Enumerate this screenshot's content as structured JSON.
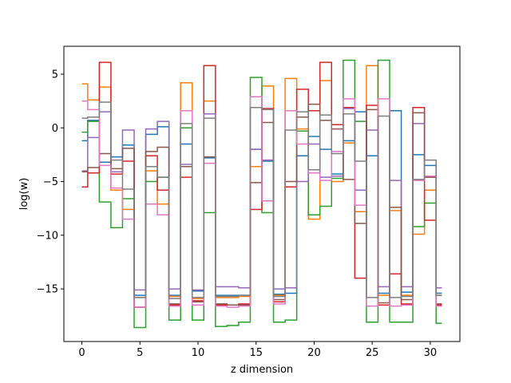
{
  "chart_data": {
    "type": "line",
    "drawstyle": "steps-mid",
    "title": "",
    "xlabel": "z dimension",
    "ylabel": "log(w)",
    "xlim": [
      -1.55,
      32.55
    ],
    "ylim": [
      -19.9,
      7.6
    ],
    "xticks": [
      0,
      5,
      10,
      15,
      20,
      25,
      30
    ],
    "yticks": [
      5,
      0,
      -5,
      -10,
      -15
    ],
    "grid": false,
    "legend": "none",
    "x": [
      0,
      1,
      2,
      3,
      4,
      5,
      6,
      7,
      8,
      9,
      10,
      11,
      12,
      13,
      14,
      15,
      16,
      17,
      18,
      19,
      20,
      21,
      22,
      23,
      24,
      25,
      26,
      27,
      28,
      29,
      30,
      31
    ],
    "series": [
      {
        "color": "#1f77b4",
        "values": [
          -1.2,
          0.7,
          -3.2,
          -2.7,
          -1.6,
          -15.6,
          -0.6,
          0.1,
          -15.6,
          -1.5,
          -15.2,
          -2.8,
          -15.6,
          -15.6,
          -15.6,
          -2.0,
          -3.1,
          -15.5,
          -15.4,
          -2.6,
          -0.8,
          -2.0,
          -4.3,
          -1.2,
          1.5,
          -2.6,
          -15.4,
          1.6,
          -15.3,
          -2.5,
          -3.5,
          -15.4
        ]
      },
      {
        "color": "#ff7f0e",
        "values": [
          4.1,
          2.6,
          3.8,
          -5.8,
          -7.6,
          -15.8,
          -4.0,
          -7.1,
          -15.7,
          4.2,
          -15.9,
          2.5,
          -15.8,
          -15.8,
          -15.7,
          -3.6,
          3.9,
          -15.6,
          4.6,
          -0.1,
          -8.5,
          4.4,
          -5.0,
          -1.4,
          -7.8,
          5.8,
          -15.6,
          -7.7,
          -15.6,
          -9.9,
          -5.8,
          -15.6
        ]
      },
      {
        "color": "#2ca02c",
        "values": [
          -0.4,
          0.6,
          -6.9,
          -9.3,
          -6.6,
          -18.6,
          -5.0,
          -4.6,
          -17.9,
          0.0,
          -17.9,
          -7.9,
          -18.5,
          -18.4,
          -18.1,
          4.7,
          -7.9,
          -18.1,
          -17.9,
          -0.3,
          -8.1,
          -7.3,
          -4.7,
          6.3,
          0.6,
          -18.1,
          6.3,
          -18.1,
          -18.1,
          -9.2,
          -7.0,
          -18.2
        ]
      },
      {
        "color": "#d62728",
        "values": [
          -5.5,
          -4.2,
          6.1,
          -4.3,
          -3.1,
          -16.7,
          -2.6,
          -5.8,
          -16.5,
          -4.6,
          -16.1,
          5.8,
          -16.5,
          -16.5,
          -16.4,
          -7.6,
          1.8,
          -16.2,
          -5.5,
          3.6,
          1.6,
          6.1,
          0.3,
          1.9,
          -14.0,
          2.1,
          -16.5,
          -13.6,
          -16.4,
          1.9,
          -8.6,
          -16.5
        ]
      },
      {
        "color": "#9467bd",
        "values": [
          -4.0,
          -0.9,
          1.5,
          -4.1,
          -0.2,
          -15.1,
          -0.1,
          0.6,
          -15.0,
          -3.4,
          -15.1,
          1.3,
          -14.8,
          -14.8,
          -14.9,
          -2.0,
          -3.0,
          -15.0,
          -14.9,
          -5.0,
          -1.5,
          -4.6,
          -4.5,
          1.8,
          -5.8,
          -0.2,
          -14.8,
          -4.9,
          -14.8,
          0.4,
          -4.6,
          -14.9
        ]
      },
      {
        "color": "#8c564b",
        "values": [
          -4.1,
          -3.7,
          -2.4,
          -3.8,
          -1.9,
          -16.7,
          -2.2,
          -1.8,
          -16.4,
          -3.6,
          -16.2,
          -2.7,
          -16.4,
          -16.5,
          -16.5,
          -5.1,
          0.5,
          -16.0,
          -5.0,
          1.0,
          2.2,
          0.7,
          -0.1,
          -4.8,
          -8.9,
          1.7,
          -16.3,
          -7.4,
          -16.0,
          1.4,
          -4.6,
          -16.4
        ]
      },
      {
        "color": "#e377c2",
        "values": [
          2.5,
          1.7,
          -3.5,
          -5.6,
          -8.5,
          -16.7,
          -7.1,
          -8.1,
          -16.6,
          1.6,
          -16.5,
          -3.3,
          -16.6,
          -16.7,
          -16.6,
          2.9,
          -6.8,
          -16.4,
          1.6,
          -1.5,
          -4.2,
          -4.9,
          -2.2,
          2.7,
          -7.2,
          -16.6,
          2.7,
          -16.6,
          -16.5,
          -4.9,
          -4.5,
          -16.6
        ]
      },
      {
        "color": "#7f7f7f",
        "values": [
          0.9,
          1.0,
          2.4,
          -3.0,
          -5.7,
          -15.8,
          -3.6,
          -4.6,
          -15.9,
          0.4,
          -15.8,
          0.9,
          -15.7,
          -15.7,
          -15.6,
          1.9,
          1.7,
          -15.7,
          -0.2,
          1.5,
          -3.9,
          1.2,
          -2.4,
          1.3,
          -3.1,
          -15.8,
          1.1,
          -15.8,
          -15.7,
          -4.8,
          -3.0,
          -15.6
        ]
      }
    ]
  }
}
